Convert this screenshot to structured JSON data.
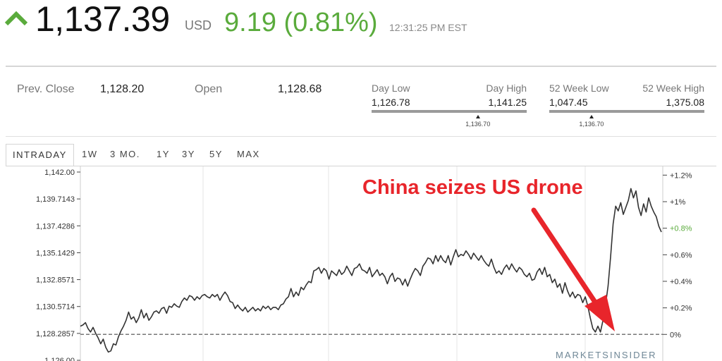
{
  "quote": {
    "price": "1,137.39",
    "currency": "USD",
    "change": "9.19 (0.81%)",
    "timestamp": "12:31:25 PM EST",
    "direction_icon": "up-chevron-icon",
    "up_color": "#5aab3c"
  },
  "stats": {
    "prev_close_label": "Prev. Close",
    "prev_close_value": "1,128.20",
    "open_label": "Open",
    "open_value": "1,128.68",
    "day_range": {
      "low_label": "Day Low",
      "low_value": "1,126.78",
      "high_label": "Day High",
      "high_value": "1,141.25",
      "current_value": "1,136.70",
      "low": 1126.78,
      "high": 1141.25,
      "current": 1136.7
    },
    "week52_range": {
      "low_label": "52 Week Low",
      "low_value": "1,047.45",
      "high_label": "52 Week High",
      "high_value": "1,375.08",
      "current_value": "1,136.70",
      "low": 1047.45,
      "high": 1375.08,
      "current": 1136.7
    }
  },
  "tabs": [
    "INTRADAY",
    "1W",
    "3 MO.",
    "1Y",
    "3Y",
    "5Y",
    "MAX"
  ],
  "active_tab": 0,
  "annotation": {
    "text": "China seizes US drone",
    "color": "#e8252b"
  },
  "watermark": "MARKETSINSIDER",
  "chart_data": {
    "type": "line",
    "title": "",
    "xlabel": "",
    "ylabel": "",
    "ylim": [
      1126.0,
      1142.0
    ],
    "y_ticks_left": [
      "1,142.00",
      "1,139.7143",
      "1,137.4286",
      "1,135.1429",
      "1,132.8571",
      "1,130.5714",
      "1,128.2857",
      "1,126.00"
    ],
    "y_tick_values_left": [
      1142.0,
      1139.7143,
      1137.4286,
      1135.1429,
      1132.8571,
      1130.5714,
      1128.2857,
      1126.0
    ],
    "y_ticks_right": [
      "+1.2%",
      "+1%",
      "+0.8%",
      "+0.6%",
      "+0.4%",
      "+0.2%",
      "0%"
    ],
    "y_tick_values_right": [
      1.2,
      1.0,
      0.8,
      0.6,
      0.4,
      0.2,
      0.0
    ],
    "highlight_right_tick": "+0.8%",
    "baseline": 1128.2,
    "grid": true,
    "line_color": "#333333",
    "series": [
      {
        "values": [
          1128.9,
          1129.0,
          1129.2,
          1128.7,
          1128.4,
          1128.8,
          1128.3,
          1127.9,
          1127.4,
          1127.8,
          1127.1,
          1126.7,
          1126.8,
          1127.4,
          1127.3,
          1128.0,
          1128.5,
          1128.9,
          1129.4,
          1130.1,
          1129.5,
          1129.7,
          1129.2,
          1129.6,
          1130.3,
          1129.6,
          1130.0,
          1129.4,
          1129.7,
          1130.1,
          1130.2,
          1130.0,
          1130.4,
          1130.5,
          1130.0,
          1130.6,
          1130.5,
          1130.8,
          1130.6,
          1130.5,
          1131.0,
          1131.3,
          1131.1,
          1131.5,
          1131.4,
          1131.1,
          1131.4,
          1131.2,
          1131.5,
          1131.6,
          1131.4,
          1131.3,
          1131.6,
          1131.4,
          1131.6,
          1131.1,
          1131.5,
          1131.8,
          1131.5,
          1131.0,
          1130.9,
          1130.4,
          1130.7,
          1130.4,
          1130.2,
          1130.5,
          1130.1,
          1130.3,
          1130.5,
          1130.2,
          1130.4,
          1130.2,
          1130.6,
          1130.4,
          1130.6,
          1130.3,
          1130.5,
          1130.5,
          1130.3,
          1130.7,
          1130.8,
          1131.2,
          1131.4,
          1132.1,
          1131.4,
          1131.8,
          1131.5,
          1132.2,
          1132.0,
          1132.4,
          1132.7,
          1132.6,
          1133.6,
          1133.7,
          1133.9,
          1133.4,
          1133.8,
          1133.6,
          1132.9,
          1133.6,
          1133.4,
          1133.2,
          1133.7,
          1133.3,
          1133.5,
          1134.0,
          1133.6,
          1133.2,
          1133.8,
          1133.9,
          1134.2,
          1133.7,
          1133.6,
          1133.4,
          1133.9,
          1133.1,
          1133.4,
          1133.7,
          1133.2,
          1133.4,
          1133.1,
          1132.5,
          1133.1,
          1133.4,
          1132.7,
          1133.0,
          1132.9,
          1132.4,
          1132.9,
          1132.3,
          1132.9,
          1133.4,
          1133.8,
          1133.6,
          1133.2,
          1134.0,
          1134.3,
          1134.7,
          1134.6,
          1134.2,
          1134.9,
          1134.4,
          1134.9,
          1134.5,
          1134.3,
          1134.9,
          1134.1,
          1134.8,
          1135.4,
          1134.8,
          1135.0,
          1134.9,
          1135.3,
          1135.0,
          1134.6,
          1135.1,
          1134.8,
          1134.5,
          1134.9,
          1134.5,
          1134.2,
          1134.0,
          1134.6,
          1133.9,
          1133.4,
          1133.6,
          1133.3,
          1133.8,
          1134.1,
          1133.7,
          1134.2,
          1133.8,
          1133.5,
          1133.9,
          1133.7,
          1133.3,
          1133.1,
          1133.4,
          1132.8,
          1132.9,
          1133.5,
          1133.8,
          1133.3,
          1133.9,
          1133.1,
          1133.3,
          1132.6,
          1132.9,
          1132.2,
          1132.5,
          1131.7,
          1132.6,
          1131.9,
          1131.4,
          1131.8,
          1131.3,
          1131.6,
          1131.5,
          1130.9,
          1131.4,
          1130.6,
          1129.6,
          1128.7,
          1128.4,
          1128.9,
          1128.4,
          1129.4,
          1130.7,
          1132.3,
          1134.8,
          1137.6,
          1139.1,
          1138.7,
          1139.4,
          1138.4,
          1139.0,
          1139.6,
          1140.6,
          1139.8,
          1140.4,
          1139.0,
          1138.3,
          1139.3,
          1138.6,
          1139.8,
          1139.1,
          1138.6,
          1138.2,
          1137.4,
          1136.9
        ]
      }
    ]
  }
}
